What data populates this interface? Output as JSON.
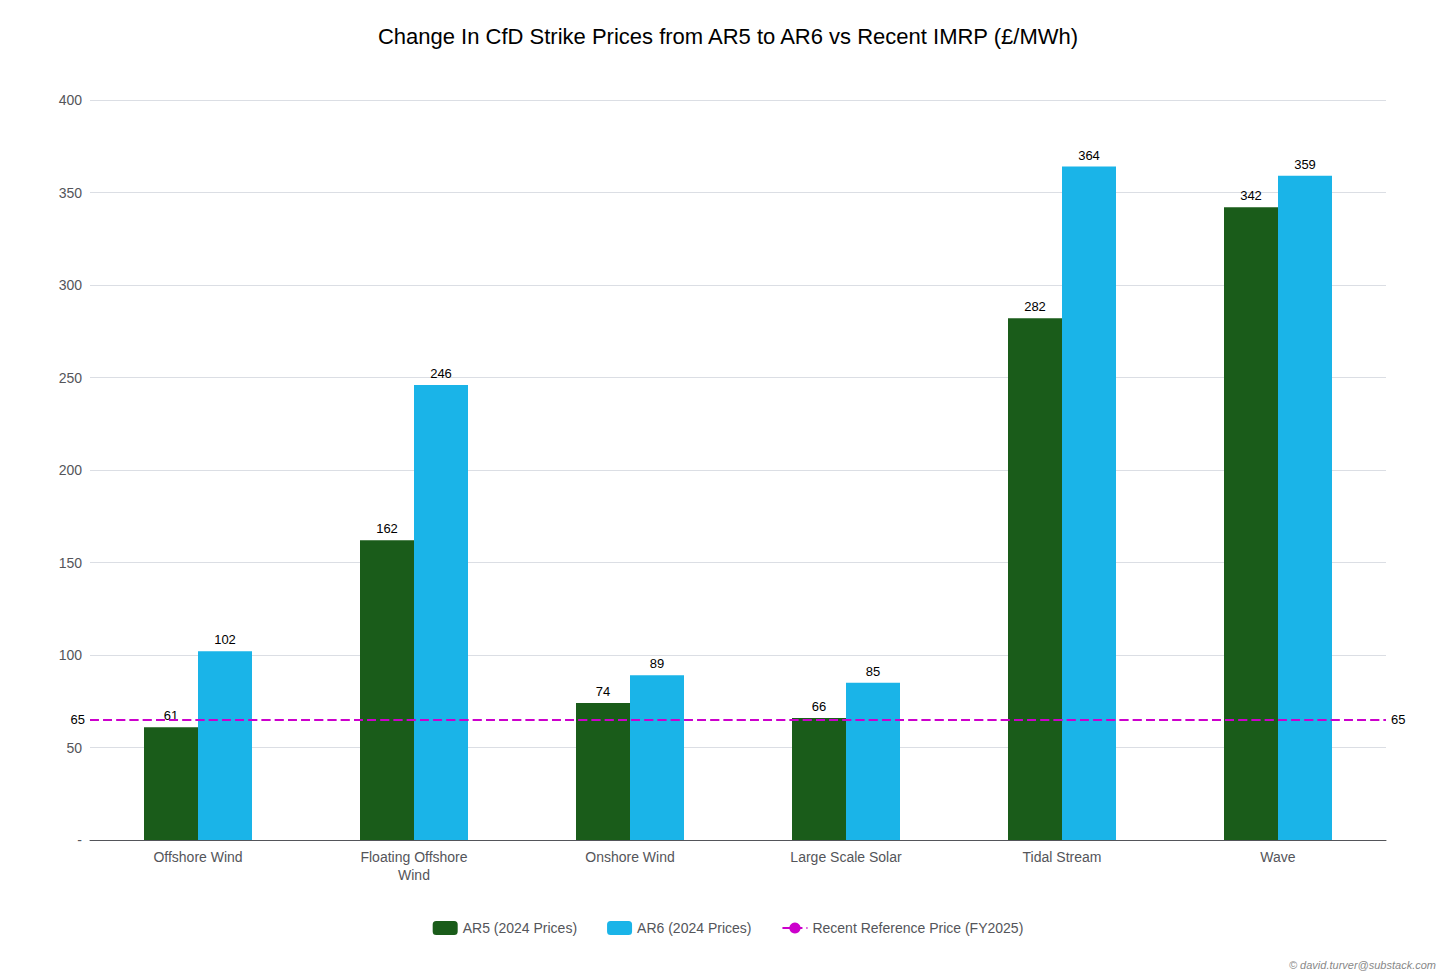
{
  "chart_data": {
    "type": "bar",
    "title": "Change In CfD Strike Prices from AR5 to AR6 vs Recent IMRP (£/MWh)",
    "categories": [
      "Offshore Wind",
      "Floating Offshore\nWind",
      "Onshore Wind",
      "Large Scale Solar",
      "Tidal Stream",
      "Wave"
    ],
    "series": [
      {
        "name": "AR5 (2024 Prices)",
        "color": "#1a5c1a",
        "values": [
          61,
          162,
          74,
          66,
          282,
          342
        ]
      },
      {
        "name": "AR6 (2024 Prices)",
        "color": "#1ab4e8",
        "values": [
          102,
          246,
          89,
          85,
          364,
          359
        ]
      }
    ],
    "reference_line": {
      "name": "Recent Reference Price (FY2025)",
      "value": 65,
      "color": "#cc00cc",
      "line_style": "dashed",
      "label_left": "65",
      "label_right": "65"
    },
    "data_labels": true,
    "ylim": [
      0,
      400
    ],
    "yticks": [
      {
        "value": 0,
        "label": "-"
      },
      50,
      100,
      150,
      200,
      250,
      300,
      350,
      400
    ],
    "grid": true,
    "legend": "bottom",
    "watermark": "© david.turver@substack.com"
  }
}
